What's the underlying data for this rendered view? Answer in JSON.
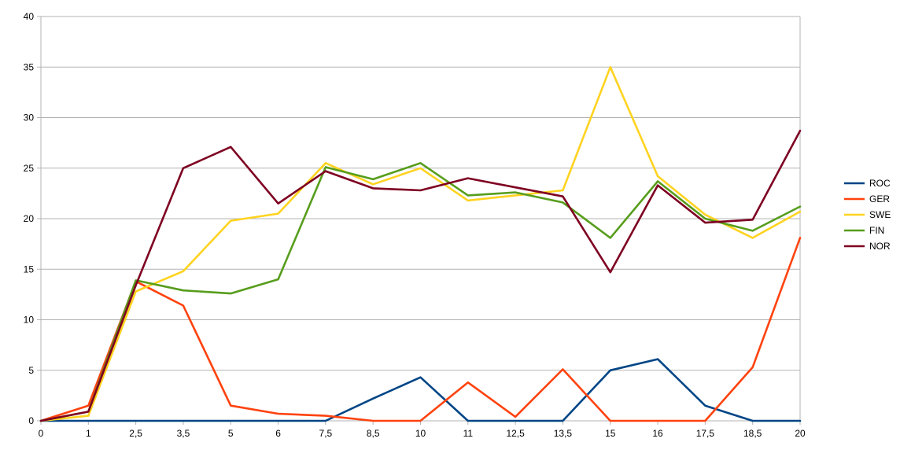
{
  "chart_data": {
    "type": "line",
    "title": "",
    "xlabel": "",
    "ylabel": "",
    "x": [
      "0",
      "1",
      "2,5",
      "3,5",
      "5",
      "6",
      "7,5",
      "8,5",
      "10",
      "11",
      "12,5",
      "13,5",
      "15",
      "16",
      "17,5",
      "18,5",
      "20"
    ],
    "ylim": [
      0,
      40
    ],
    "yticks": [
      "0",
      "5",
      "10",
      "15",
      "20",
      "25",
      "30",
      "35",
      "40"
    ],
    "grid": "horizontal",
    "legend_position": "right",
    "series": [
      {
        "name": "ROC",
        "color": "#004586",
        "values": [
          0,
          0,
          0,
          0,
          0,
          0,
          0,
          2.2,
          4.3,
          0,
          0,
          0,
          5.0,
          6.1,
          1.5,
          0,
          0
        ]
      },
      {
        "name": "GER",
        "color": "#ff420e",
        "values": [
          0,
          1.5,
          13.8,
          11.4,
          1.5,
          0.7,
          0.5,
          0,
          0,
          3.8,
          0.4,
          5.1,
          0,
          0,
          0,
          5.3,
          18.1
        ]
      },
      {
        "name": "SWE",
        "color": "#ffd320",
        "values": [
          0,
          0.5,
          12.8,
          14.8,
          19.8,
          20.5,
          25.5,
          23.4,
          25.0,
          21.8,
          22.3,
          22.8,
          35.0,
          24.2,
          20.4,
          18.1,
          20.7
        ]
      },
      {
        "name": "FIN",
        "color": "#579d1c",
        "values": [
          0,
          0.9,
          13.9,
          12.9,
          12.6,
          14.0,
          25.1,
          23.9,
          25.5,
          22.3,
          22.6,
          21.6,
          18.1,
          23.7,
          20.0,
          18.8,
          21.2
        ]
      },
      {
        "name": "NOR",
        "color": "#7e0021",
        "values": [
          0,
          0.9,
          13.4,
          25.0,
          27.1,
          21.5,
          24.7,
          23.0,
          22.8,
          24.0,
          23.1,
          22.2,
          14.7,
          23.3,
          19.6,
          19.9,
          28.7
        ]
      }
    ]
  }
}
